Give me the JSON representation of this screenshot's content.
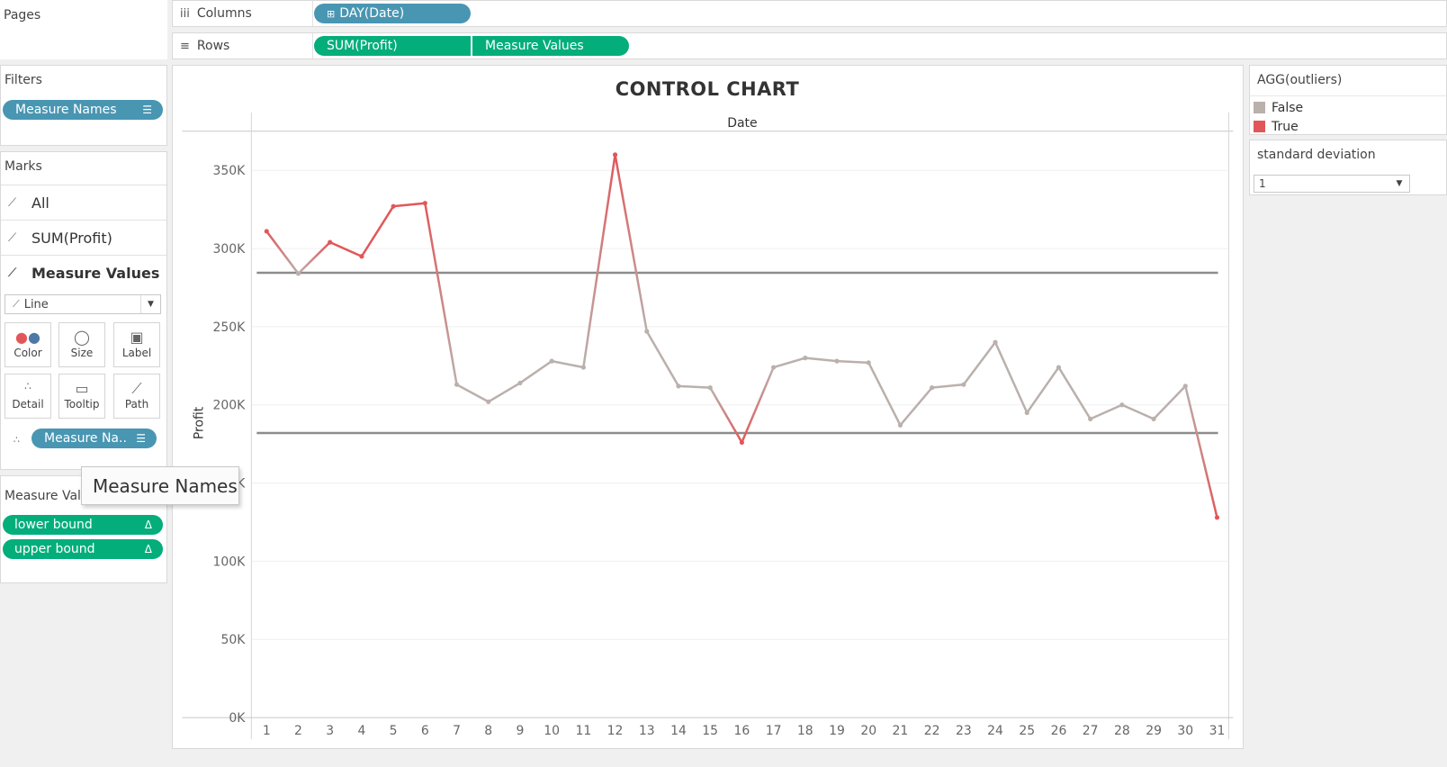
{
  "pages": {
    "title": "Pages"
  },
  "shelves": {
    "columns": {
      "label": "Columns",
      "icon": "iii",
      "pill": "DAY(Date)"
    },
    "rows": {
      "label": "Rows",
      "icon": "≡",
      "pills": [
        "SUM(Profit)",
        "Measure Values"
      ]
    }
  },
  "filters": {
    "title": "Filters",
    "pill": "Measure Names"
  },
  "marks": {
    "title": "Marks",
    "rows": [
      "All",
      "SUM(Profit)",
      "Measure Values"
    ],
    "mark_type": "Line",
    "buttons": [
      "Color",
      "Size",
      "Label",
      "Detail",
      "Tooltip",
      "Path"
    ],
    "detail_pill": "Measure Na.."
  },
  "measure_values": {
    "title": "Measure Valu",
    "items": [
      "lower bound",
      "upper bound"
    ]
  },
  "tooltip": {
    "text": "Measure Names"
  },
  "legend": {
    "title": "AGG(outliers)",
    "items": [
      {
        "label": "False",
        "color": "#bab0ac"
      },
      {
        "label": "True",
        "color": "#e15759"
      }
    ]
  },
  "param": {
    "title": "standard deviation",
    "value": "1"
  },
  "colors": {
    "pill_blue": "#4996b2",
    "pill_green": "#03ae7b",
    "normal": "#bab0ac",
    "outlier": "#e15759",
    "bound": "#8c8c8c"
  },
  "chart_data": {
    "type": "line",
    "title": "CONTROL CHART",
    "header": "Date",
    "xlabel": "",
    "ylabel": "Profit",
    "x": [
      1,
      2,
      3,
      4,
      5,
      6,
      7,
      8,
      9,
      10,
      11,
      12,
      13,
      14,
      15,
      16,
      17,
      18,
      19,
      20,
      21,
      22,
      23,
      24,
      25,
      26,
      27,
      28,
      29,
      30,
      31
    ],
    "y_ticks": [
      "0K",
      "50K",
      "100K",
      "150K",
      "200K",
      "250K",
      "300K",
      "350K"
    ],
    "y_tick_values": [
      0,
      50000,
      100000,
      150000,
      200000,
      250000,
      300000,
      350000
    ],
    "ylim": [
      0,
      375000
    ],
    "series": [
      {
        "values": [
          311000,
          284000,
          304000,
          295000,
          327000,
          329000,
          213000,
          202000,
          214000,
          228000,
          224000,
          360000,
          247000,
          212000,
          211000,
          176000,
          224000,
          230000,
          228000,
          227000,
          187000,
          211000,
          213000,
          240000,
          195000,
          224000,
          191000,
          200000,
          191000,
          212000,
          128000
        ],
        "outliers": [
          true,
          false,
          true,
          true,
          true,
          true,
          false,
          false,
          false,
          false,
          false,
          true,
          false,
          false,
          false,
          true,
          false,
          false,
          false,
          false,
          false,
          false,
          false,
          false,
          false,
          false,
          false,
          false,
          false,
          false,
          true
        ]
      }
    ],
    "upper_bound": 284500,
    "lower_bound": 182000,
    "grid": true,
    "legend_position": "right"
  }
}
